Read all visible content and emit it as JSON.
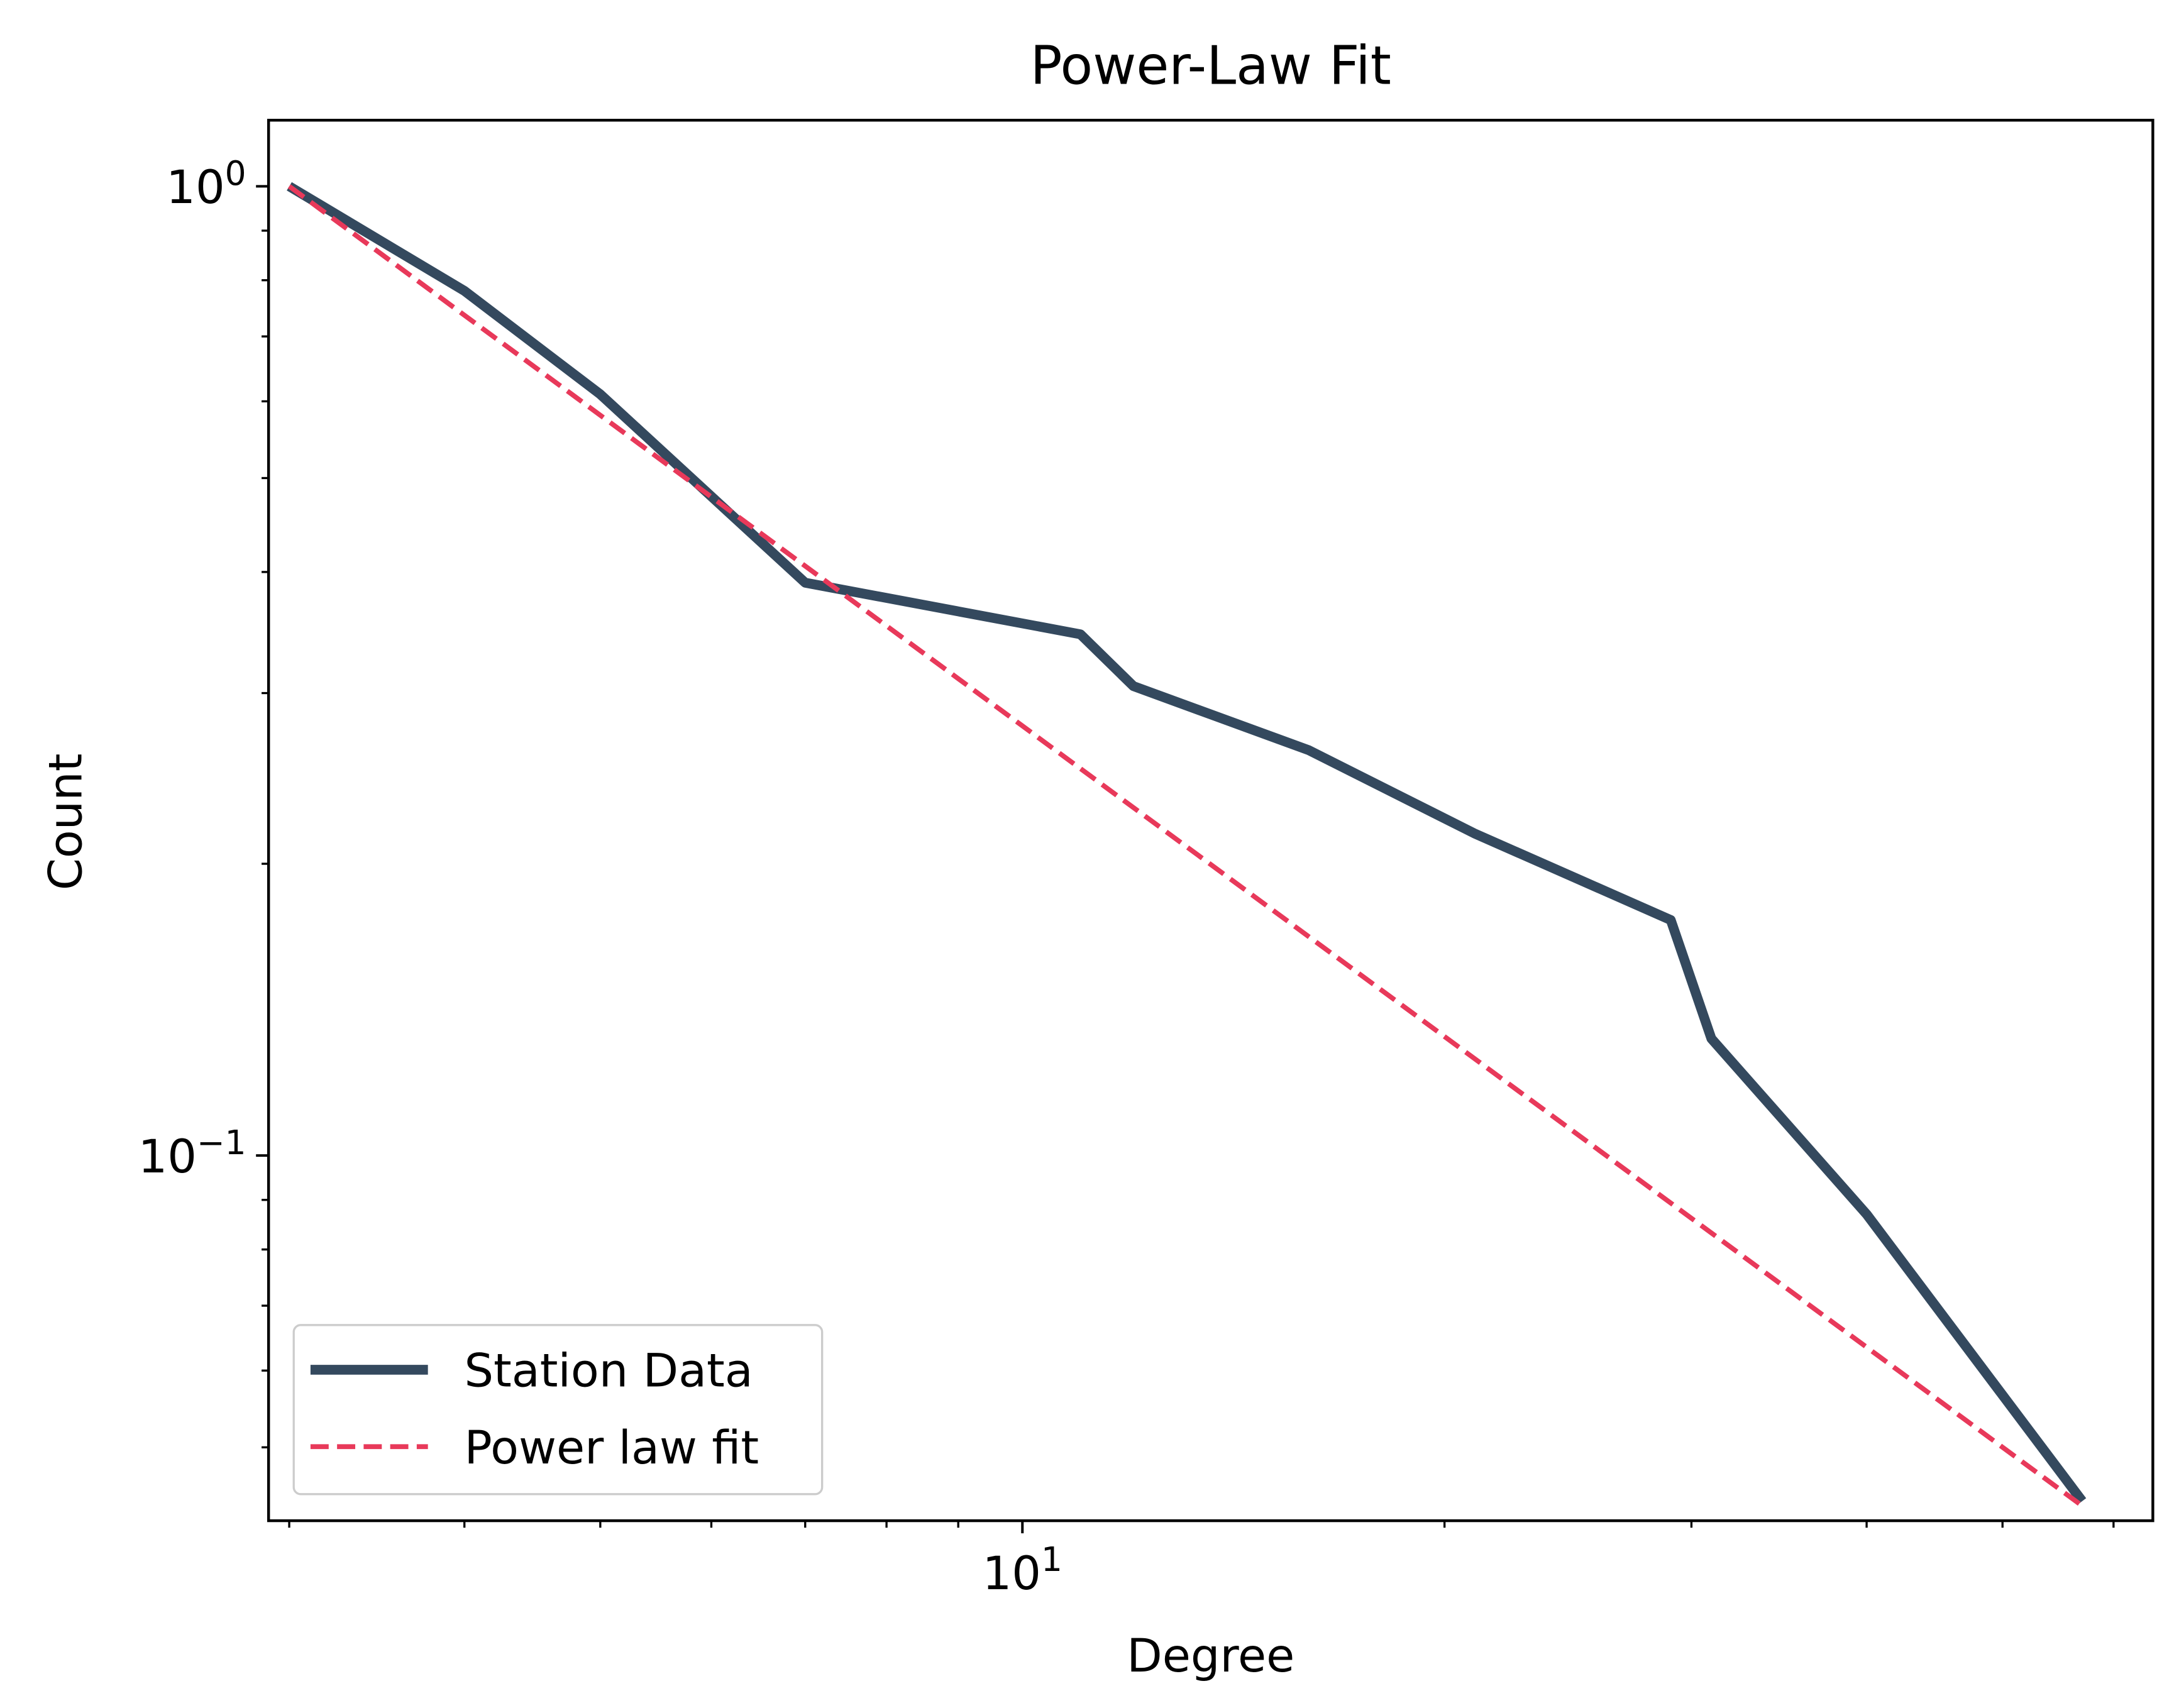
{
  "chart_data": {
    "type": "line",
    "title": "Power-Law Fit",
    "xlabel": "Degree",
    "ylabel": "Count",
    "xscale": "log",
    "yscale": "log",
    "xlim": [
      2.9,
      64
    ],
    "ylim": [
      0.042,
      1.17
    ],
    "x_ticks": [
      {
        "value": 10,
        "base": "10",
        "exp": "1"
      }
    ],
    "y_ticks": [
      {
        "value": 1,
        "base": "10",
        "exp": "0"
      },
      {
        "value": 0.1,
        "base": "10",
        "exp": "−1"
      }
    ],
    "grid": false,
    "legend_position": "lower-left",
    "series": [
      {
        "name": "Station Data",
        "style": "solid",
        "color": "#34495e",
        "x": [
          3,
          4,
          5,
          7,
          11,
          12,
          16,
          21,
          29,
          31,
          40,
          57
        ],
        "y": [
          1.0,
          0.78,
          0.61,
          0.39,
          0.345,
          0.305,
          0.262,
          0.215,
          0.175,
          0.132,
          0.087,
          0.044
        ]
      },
      {
        "name": "Power law fit",
        "style": "dashed",
        "color": "#e8395a",
        "x": [
          3,
          57
        ],
        "y": [
          1.0,
          0.0435
        ]
      }
    ]
  }
}
